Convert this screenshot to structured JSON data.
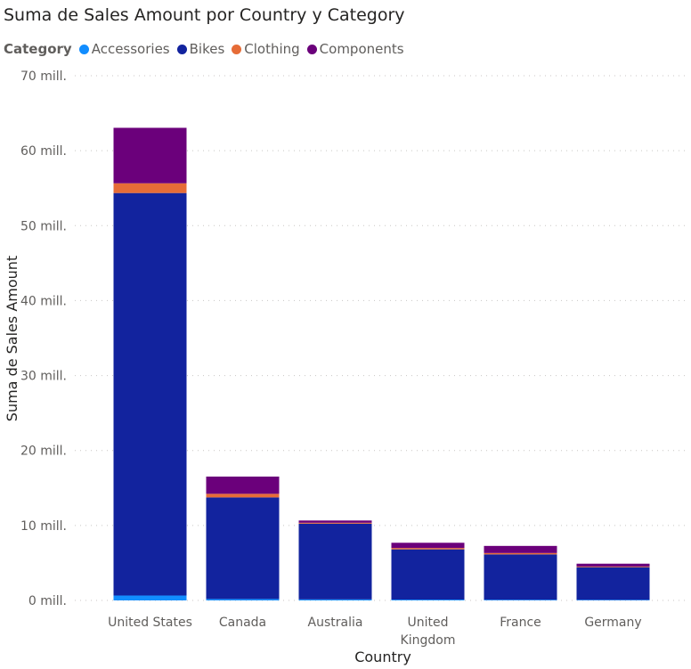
{
  "chart_data": {
    "type": "bar",
    "stacked": true,
    "title": "Suma de Sales Amount por Country y Category",
    "legend_title": "Category",
    "legend_position": "top-left",
    "xlabel": "Country",
    "ylabel": "Suma de Sales Amount",
    "ylim": [
      0,
      70000000
    ],
    "yticks": [
      0,
      10000000,
      20000000,
      30000000,
      40000000,
      50000000,
      60000000,
      70000000
    ],
    "ytick_labels": [
      "0 mill.",
      "10 mill.",
      "20 mill.",
      "30 mill.",
      "40 mill.",
      "50 mill.",
      "60 mill.",
      "70 mill."
    ],
    "grid": true,
    "categories": [
      "United States",
      "Canada",
      "Australia",
      "United Kingdom",
      "France",
      "Germany"
    ],
    "series": [
      {
        "name": "Accessories",
        "color": "#118DFF",
        "values": [
          650000,
          190000,
          140000,
          110000,
          90000,
          80000
        ]
      },
      {
        "name": "Bikes",
        "color": "#12239E",
        "values": [
          53700000,
          13550000,
          10100000,
          6700000,
          6050000,
          4350000
        ]
      },
      {
        "name": "Clothing",
        "color": "#E66C37",
        "values": [
          1300000,
          480000,
          120000,
          180000,
          180000,
          90000
        ]
      },
      {
        "name": "Components",
        "color": "#6B007B",
        "values": [
          7400000,
          2300000,
          300000,
          700000,
          950000,
          380000
        ]
      }
    ]
  }
}
